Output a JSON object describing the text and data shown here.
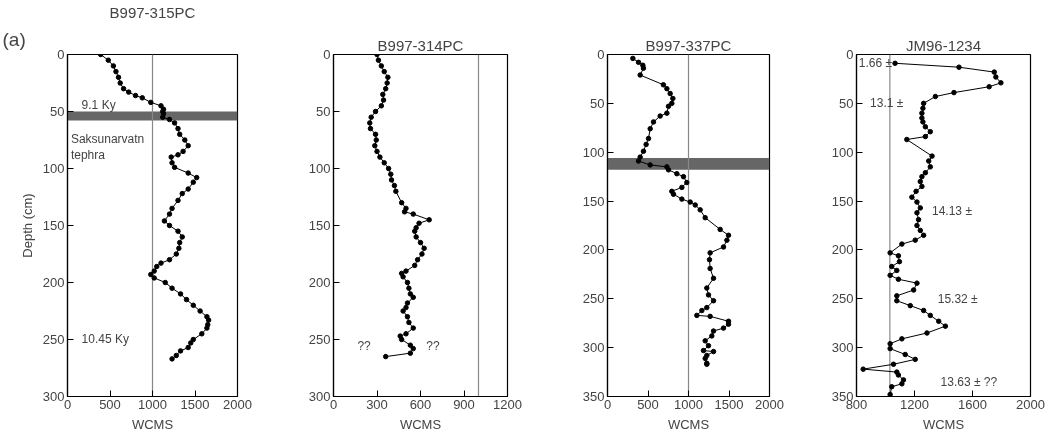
{
  "chart_data": [
    {
      "type": "line",
      "title": "B997-315PC",
      "xlabel": "WCMS",
      "ylabel": "Depth (cm)",
      "xlim": [
        0,
        2000
      ],
      "ylim": [
        300,
        0
      ],
      "xticks": [
        0,
        500,
        1000,
        1500,
        2000
      ],
      "yticks": [
        0,
        50,
        100,
        150,
        200,
        250,
        300
      ],
      "grid": false,
      "marker": "circle",
      "line_style": "solid",
      "ref_lines": [
        {
          "axis": "x",
          "value": 1000,
          "color": "#888888"
        }
      ],
      "bands": [
        {
          "axis": "y",
          "from": 50,
          "to": 58,
          "color": "#666666"
        }
      ],
      "annotations": [
        "(a)",
        "9.1 Ky",
        "Saksunarvatn\ntephra",
        "10.45 Ky"
      ],
      "series": [
        {
          "color": "#000000",
          "x": [
            390,
            480,
            540,
            570,
            600,
            620,
            660,
            720,
            800,
            880,
            980,
            1100,
            1130,
            1120,
            1130,
            1120,
            1200,
            1260,
            1300,
            1320,
            1380,
            1420,
            1360,
            1300,
            1220,
            1230,
            1260,
            1420,
            1520,
            1480,
            1420,
            1350,
            1300,
            1230,
            1200,
            1140,
            1200,
            1300,
            1350,
            1320,
            1310,
            1280,
            1200,
            1100,
            1050,
            1020,
            980,
            1020,
            1150,
            1230,
            1330,
            1400,
            1480,
            1560,
            1640,
            1660,
            1650,
            1640,
            1580,
            1480,
            1450,
            1420,
            1330,
            1280,
            1230
          ],
          "values": [
            0,
            5,
            10,
            15,
            20,
            25,
            30,
            33,
            36,
            38,
            42,
            45,
            48,
            50,
            52,
            55,
            57,
            60,
            65,
            70,
            75,
            80,
            85,
            88,
            90,
            95,
            99,
            104,
            108,
            112,
            118,
            122,
            128,
            135,
            140,
            146,
            150,
            155,
            160,
            165,
            170,
            175,
            180,
            183,
            186,
            190,
            193,
            196,
            200,
            205,
            210,
            215,
            220,
            225,
            230,
            233,
            237,
            240,
            245,
            250,
            253,
            257,
            260,
            264,
            267
          ]
        }
      ]
    },
    {
      "type": "line",
      "title": "B997-314PC",
      "xlabel": "WCMS",
      "xlim": [
        0,
        1200
      ],
      "ylim": [
        300,
        0
      ],
      "xticks": [
        0,
        300,
        600,
        900,
        1200
      ],
      "yticks": [
        0,
        50,
        100,
        150,
        200,
        250,
        300
      ],
      "grid": false,
      "marker": "circle",
      "line_style": "solid",
      "ref_lines": [
        {
          "axis": "x",
          "value": 1000,
          "color": "#888888"
        }
      ],
      "annotations": [
        "??",
        "??"
      ],
      "series": [
        {
          "color": "#000000",
          "x": [
            300,
            310,
            330,
            350,
            375,
            370,
            360,
            340,
            345,
            330,
            290,
            260,
            250,
            255,
            290,
            295,
            285,
            300,
            320,
            350,
            380,
            395,
            400,
            420,
            430,
            470,
            500,
            490,
            550,
            660,
            590,
            570,
            560,
            570,
            600,
            625,
            610,
            580,
            560,
            500,
            470,
            480,
            510,
            520,
            530,
            550,
            510,
            500,
            480,
            510,
            520,
            550,
            500,
            460,
            470,
            530,
            550,
            530,
            360
          ],
          "values": [
            0,
            5,
            10,
            15,
            20,
            25,
            30,
            35,
            40,
            45,
            50,
            55,
            60,
            65,
            70,
            75,
            80,
            85,
            90,
            95,
            100,
            105,
            110,
            115,
            120,
            130,
            135,
            138,
            140,
            145,
            148,
            152,
            155,
            160,
            165,
            170,
            175,
            180,
            185,
            190,
            192,
            195,
            200,
            205,
            210,
            213,
            218,
            222,
            225,
            230,
            235,
            240,
            245,
            247,
            250,
            255,
            258,
            262,
            265
          ]
        }
      ]
    },
    {
      "type": "line",
      "title": "B997-337PC",
      "xlabel": "WCMS",
      "xlim": [
        0,
        2000
      ],
      "ylim": [
        350,
        0
      ],
      "xticks": [
        0,
        500,
        1000,
        1500,
        2000
      ],
      "yticks": [
        0,
        50,
        100,
        150,
        200,
        250,
        300,
        350
      ],
      "grid": false,
      "marker": "circle",
      "line_style": "solid",
      "ref_lines": [
        {
          "axis": "x",
          "value": 1000,
          "color": "#888888"
        }
      ],
      "bands": [
        {
          "axis": "y",
          "from": 106,
          "to": 118,
          "color": "#666666"
        }
      ],
      "series": [
        {
          "color": "#000000",
          "x": [
            313,
            383,
            436,
            444,
            403,
            690,
            733,
            774,
            807,
            794,
            753,
            733,
            650,
            568,
            527,
            506,
            477,
            444,
            403,
            383,
            527,
            733,
            753,
            856,
            938,
            979,
            918,
            794,
            815,
            918,
            1021,
            1083,
            1144,
            1206,
            1391,
            1494,
            1474,
            1432,
            1267,
            1259,
            1267,
            1309,
            1226,
            1247,
            1309,
            1226,
            1165,
            1103,
            1267,
            1494,
            1494,
            1432,
            1309,
            1288,
            1206,
            1247,
            1185,
            1309,
            1226,
            1206,
            1226,
            1226
          ],
          "values": [
            4,
            8,
            11,
            14,
            21,
            31,
            35,
            40,
            45,
            50,
            53,
            60,
            63,
            69,
            76,
            86,
            92,
            99,
            105,
            109,
            113,
            115,
            118,
            122,
            125,
            131,
            136,
            140,
            143,
            148,
            151,
            154,
            159,
            167,
            179,
            185,
            190,
            197,
            203,
            210,
            219,
            229,
            239,
            246,
            252,
            259,
            262,
            267,
            268,
            273,
            276,
            280,
            283,
            288,
            293,
            298,
            303,
            304,
            308,
            311,
            316,
            317
          ]
        }
      ]
    },
    {
      "type": "line",
      "title": "JM96-1234",
      "xlabel": "WCMS",
      "xlim": [
        800,
        2000
      ],
      "ylim": [
        350,
        0
      ],
      "xticks": [
        800,
        1200,
        1600,
        2000
      ],
      "yticks": [
        0,
        50,
        100,
        150,
        200,
        250,
        300,
        350
      ],
      "grid": false,
      "marker": "circle",
      "line_style": "solid",
      "ref_lines": [
        {
          "axis": "x",
          "value": 1030,
          "color": "#888888"
        }
      ],
      "annotations": [
        "1.66 ±",
        "13.1 ±",
        "14.13 ±",
        "15.32 ±",
        "13.63 ± ??"
      ],
      "series": [
        {
          "color": "#000000",
          "x": [
            1066,
            1507,
            1750,
            1761,
            1796,
            1715,
            1472,
            1344,
            1263,
            1258,
            1251,
            1251,
            1258,
            1275,
            1309,
            1275,
            1147,
            1321,
            1298,
            1309,
            1275,
            1251,
            1240,
            1251,
            1211,
            1182,
            1217,
            1240,
            1217,
            1228,
            1217,
            1240,
            1263,
            1205,
            1113,
            1032,
            1089,
            1096,
            1043,
            1078,
            1032,
            1089,
            1217,
            1194,
            1078,
            1078,
            1171,
            1263,
            1309,
            1367,
            1413,
            1286,
            1113,
            1032,
            1032,
            1136,
            1205,
            1055,
            846,
            1078,
            1089,
            1124,
            1113,
            1043,
            1032
          ],
          "values": [
            9,
            13,
            18,
            23,
            29,
            33,
            39,
            43,
            50,
            55,
            60,
            65,
            69,
            74,
            79,
            84,
            87,
            104,
            109,
            115,
            121,
            125,
            130,
            135,
            140,
            146,
            151,
            157,
            162,
            169,
            175,
            180,
            185,
            190,
            194,
            203,
            206,
            212,
            217,
            221,
            226,
            230,
            234,
            241,
            247,
            252,
            257,
            262,
            267,
            273,
            278,
            285,
            291,
            296,
            301,
            307,
            312,
            317,
            322,
            325,
            328,
            333,
            337,
            340,
            348
          ]
        }
      ]
    }
  ]
}
